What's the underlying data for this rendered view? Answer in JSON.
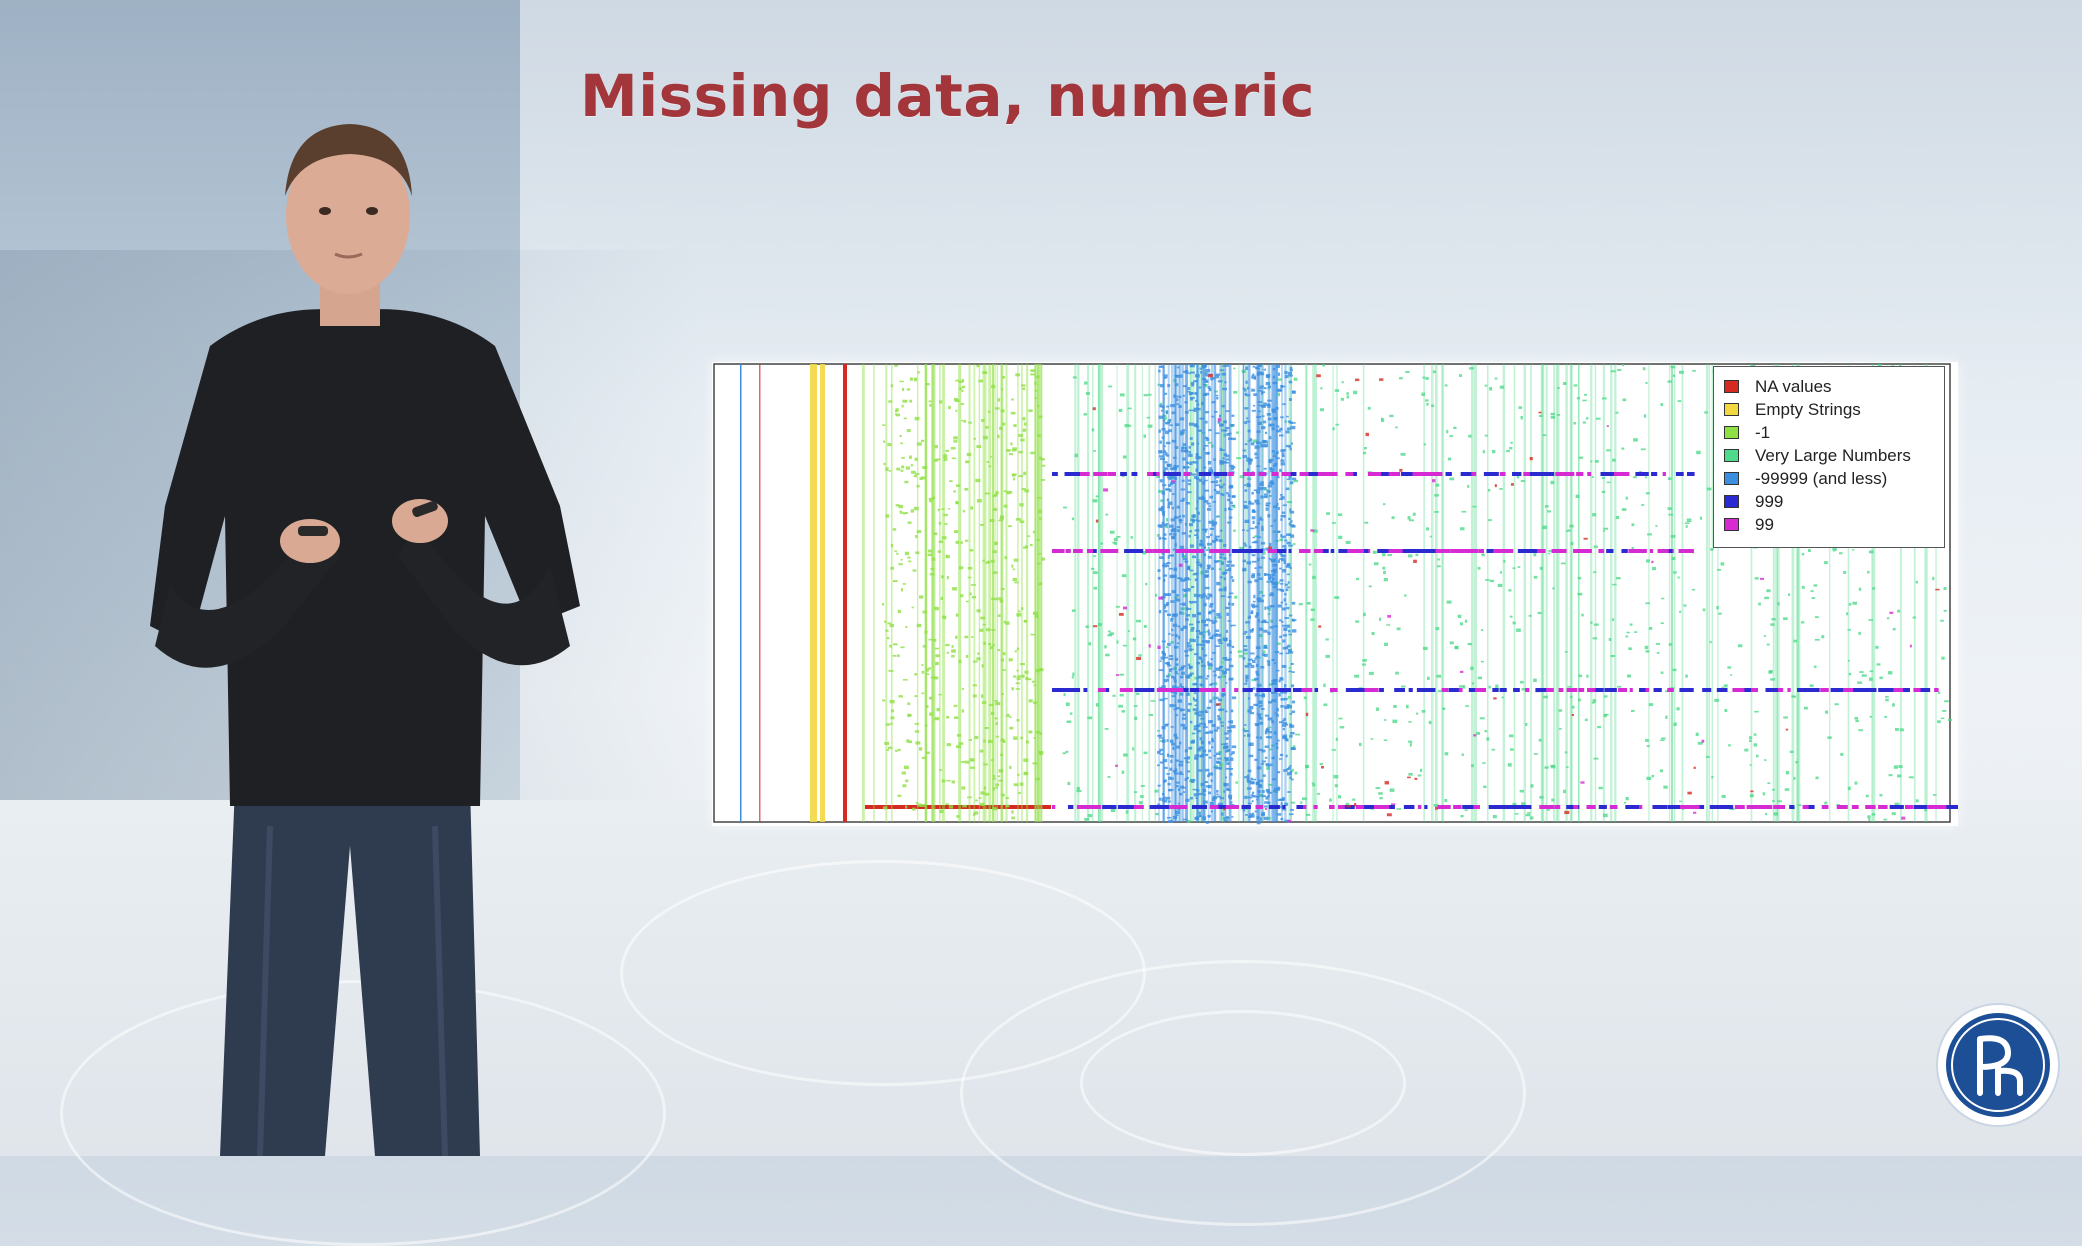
{
  "slide": {
    "title": "Missing data, numeric"
  },
  "legend": {
    "items": [
      {
        "label": "NA values",
        "color": "#d52a22"
      },
      {
        "label": "Empty Strings",
        "color": "#f2d740"
      },
      {
        "label": "-1",
        "color": "#8ee043"
      },
      {
        "label": "Very Large Numbers",
        "color": "#4fd98a"
      },
      {
        "label": "-99999 (and less)",
        "color": "#3a8fe0"
      },
      {
        "label": "999",
        "color": "#2a2ad0"
      },
      {
        "label": "99",
        "color": "#d62ad2"
      }
    ]
  },
  "colors": {
    "title": "#a2363a",
    "logo_blue": "#1d4f96"
  },
  "icons": {
    "logo": "hse-university-logo-icon"
  }
}
